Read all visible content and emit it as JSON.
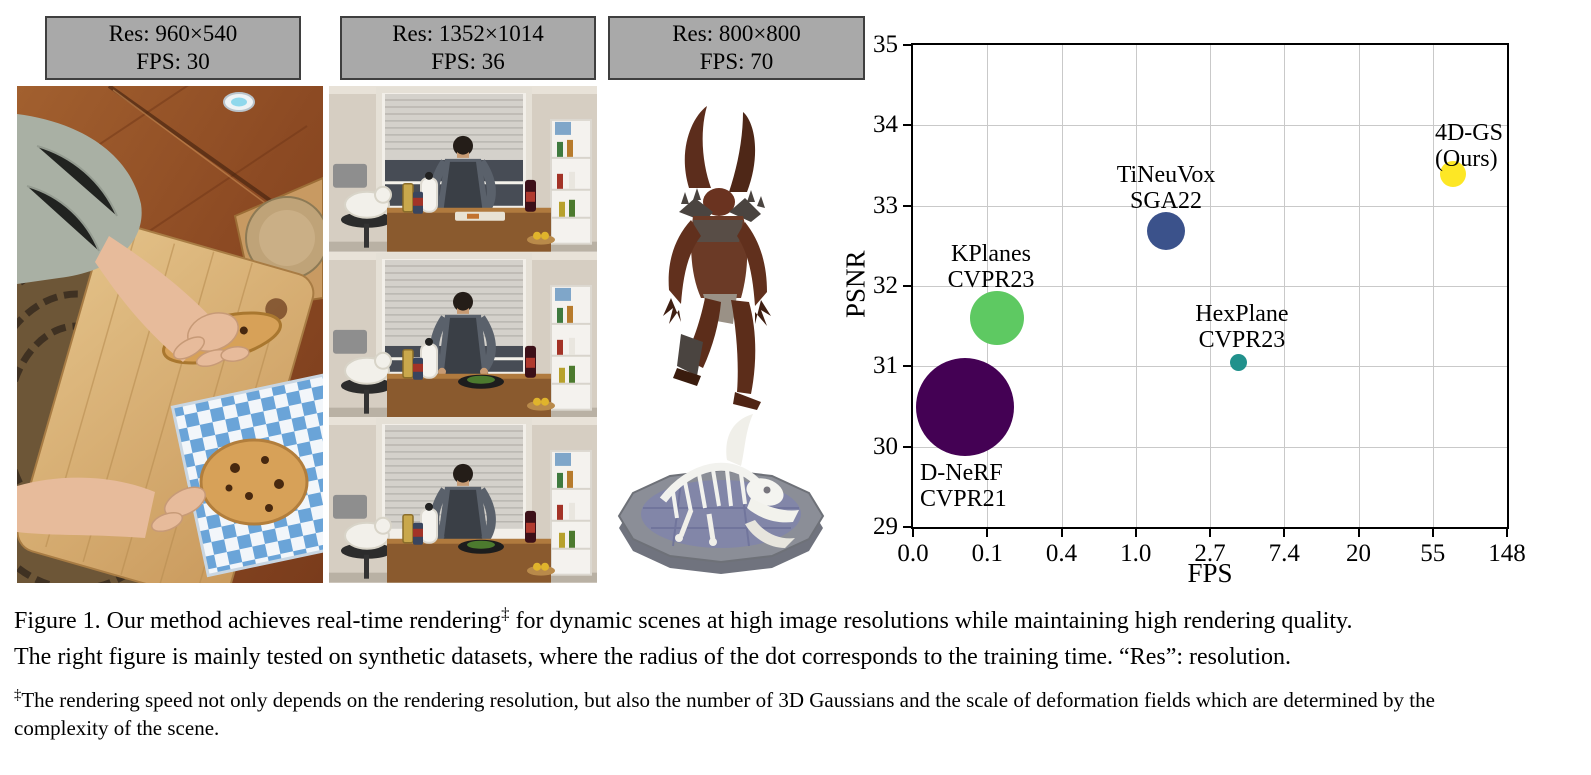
{
  "panels": [
    {
      "res_label": "Res: 960×540",
      "fps_label": "FPS: 30"
    },
    {
      "res_label": "Res: 1352×1014",
      "fps_label": "FPS: 36"
    },
    {
      "res_label": "Res: 800×800",
      "fps_label": "FPS: 70"
    }
  ],
  "chart_data": {
    "type": "scatter",
    "title": "",
    "xlabel": "FPS",
    "ylabel": "PSNR",
    "x_ticks": [
      0.0,
      0.1,
      0.4,
      1.0,
      2.7,
      7.4,
      20,
      55,
      148
    ],
    "x_tick_labels": [
      "0.0",
      "0.1",
      "0.4",
      "1.0",
      "2.7",
      "7.4",
      "20",
      "55",
      "148"
    ],
    "x_scale": "log-interpolated-between-ticks",
    "y_ticks": [
      29,
      30,
      31,
      32,
      33,
      34,
      35
    ],
    "ylim": [
      29,
      35
    ],
    "grid": true,
    "legend": "none (labels placed next to bubbles)",
    "bubble_meaning": "radius of the dot corresponds to the training time",
    "series": [
      {
        "name": "D-NeRF CVPR21",
        "label_lines": [
          "D-NeRF",
          "CVPR21"
        ],
        "fps": 0.07,
        "psnr": 30.5,
        "radius_px": 49,
        "color": "#440154",
        "label_align": "left",
        "label_dx": -45,
        "label_dy": 53
      },
      {
        "name": "KPlanes CVPR23",
        "label_lines": [
          "KPlanes",
          "CVPR23"
        ],
        "fps": 0.12,
        "psnr": 31.6,
        "radius_px": 27,
        "color": "#5ec962",
        "label_align": "center",
        "label_dx": -6,
        "label_dy": -77
      },
      {
        "name": "TiNeuVox SGA22",
        "label_lines": [
          "TiNeuVox",
          "SGA22"
        ],
        "fps": 1.5,
        "psnr": 32.68,
        "radius_px": 19,
        "color": "#3b528b",
        "label_align": "center",
        "label_dx": 0,
        "label_dy": -69
      },
      {
        "name": "HexPlane CVPR23",
        "label_lines": [
          "HexPlane",
          "CVPR23"
        ],
        "fps": 4.0,
        "psnr": 31.05,
        "radius_px": 8.5,
        "color": "#21918c",
        "label_align": "center",
        "label_dx": 3,
        "label_dy": -61
      },
      {
        "name": "4D-GS (Ours)",
        "label_lines": [
          "4D-GS",
          "(Ours)"
        ],
        "fps": 72,
        "psnr": 33.4,
        "radius_px": 13,
        "color": "#fde725",
        "label_align": "left",
        "label_dx": -18,
        "label_dy": -54
      }
    ]
  },
  "caption": {
    "line1_pre": "Figure 1. Our method achieves real-time rendering",
    "sup": "‡",
    "line1_post": " for dynamic scenes at high image resolutions while maintaining high rendering quality.",
    "line2": "The right figure is mainly tested on synthetic datasets, where the radius of the dot corresponds to the training time. “Res”: resolution."
  },
  "footnote": {
    "sup": "‡",
    "line1": "The rendering speed not only depends on the rendering resolution, but also the number of 3D Gaussians and the scale of deformation fields which are determined by the",
    "line2": "complexity of the scene."
  }
}
